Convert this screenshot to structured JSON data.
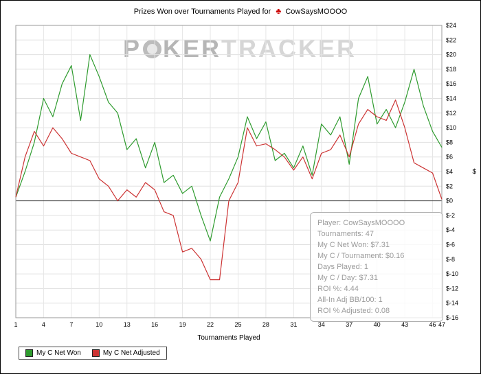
{
  "header": {
    "title_prefix": "Prizes Won over Tournaments Played for",
    "suit_icon": "club-icon",
    "suit_glyph": "♣",
    "suit_color": "#cc0000",
    "player_name": "CowSaysMOOOO"
  },
  "watermark": {
    "part1": "P",
    "chip_icon": "poker-chip-icon",
    "part2": "KER",
    "part3": "TRACKER"
  },
  "chart_data": {
    "type": "line",
    "title": "Prizes Won over Tournaments Played for CowSaysMOOOO",
    "xlabel": "Tournaments Played",
    "ylabel": "$",
    "ylim": [
      -16,
      24
    ],
    "ytick_step": 2,
    "grid": true,
    "legend_position": "bottom-left",
    "xticks": [
      1,
      4,
      7,
      10,
      13,
      16,
      19,
      22,
      25,
      28,
      31,
      34,
      37,
      40,
      43,
      46,
      47
    ],
    "x": [
      1,
      2,
      3,
      4,
      5,
      6,
      7,
      8,
      9,
      10,
      11,
      12,
      13,
      14,
      15,
      16,
      17,
      18,
      19,
      20,
      21,
      22,
      23,
      24,
      25,
      26,
      27,
      28,
      29,
      30,
      31,
      32,
      33,
      34,
      35,
      36,
      37,
      38,
      39,
      40,
      41,
      42,
      43,
      44,
      45,
      46,
      47
    ],
    "series": [
      {
        "name": "My C Net Won",
        "color": "#2e9b2e",
        "values": [
          0.5,
          4.0,
          8.0,
          14.0,
          11.5,
          16.0,
          18.5,
          11.0,
          20.0,
          17.0,
          13.5,
          12.0,
          7.0,
          8.5,
          4.5,
          8.0,
          2.5,
          3.5,
          1.0,
          2.0,
          -2.0,
          -5.5,
          0.5,
          3.0,
          6.0,
          11.5,
          8.5,
          10.8,
          5.5,
          6.5,
          4.5,
          7.5,
          3.5,
          10.5,
          9.0,
          11.5,
          5.0,
          14.0,
          17.0,
          10.5,
          12.5,
          10.0,
          13.5,
          18.0,
          13.0,
          9.5,
          7.31
        ]
      },
      {
        "name": "My C Net Adjusted",
        "color": "#cc3333",
        "values": [
          0.5,
          6.0,
          9.5,
          7.5,
          10.0,
          8.5,
          6.5,
          6.0,
          5.5,
          3.0,
          2.0,
          0.0,
          1.5,
          0.5,
          2.5,
          1.5,
          -1.5,
          -2.0,
          -7.0,
          -6.5,
          -8.0,
          -10.8,
          -10.8,
          0.0,
          2.5,
          10.0,
          7.5,
          7.8,
          7.0,
          6.0,
          4.2,
          6.0,
          3.0,
          6.5,
          7.0,
          9.0,
          6.0,
          10.5,
          12.5,
          11.5,
          11.0,
          13.8,
          10.0,
          5.2,
          4.5,
          3.8,
          0.2
        ]
      }
    ]
  },
  "axes": {
    "y_tick_labels": [
      "$24",
      "$22",
      "$20",
      "$18",
      "$16",
      "$14",
      "$12",
      "$10",
      "$8",
      "$6",
      "$4",
      "$2",
      "$0",
      "$-2",
      "$-4",
      "$-6",
      "$-8",
      "$-10",
      "$-12",
      "$-14",
      "$-16"
    ]
  },
  "tooltip": {
    "lines": [
      "Player: CowSaysMOOOO",
      "Tournaments: 47",
      "My C Net Won: $7.31",
      "My C / Tournament: $0.16",
      "Days Played: 1",
      "My C / Day: $7.31",
      "ROI %: 4.44",
      "All-In Adj BB/100: 1",
      "ROI % Adjusted: 0.08"
    ]
  },
  "legend": {
    "items": [
      {
        "label": "My C Net Won",
        "color": "#2e9b2e"
      },
      {
        "label": "My C Net Adjusted",
        "color": "#cc3333"
      }
    ]
  }
}
